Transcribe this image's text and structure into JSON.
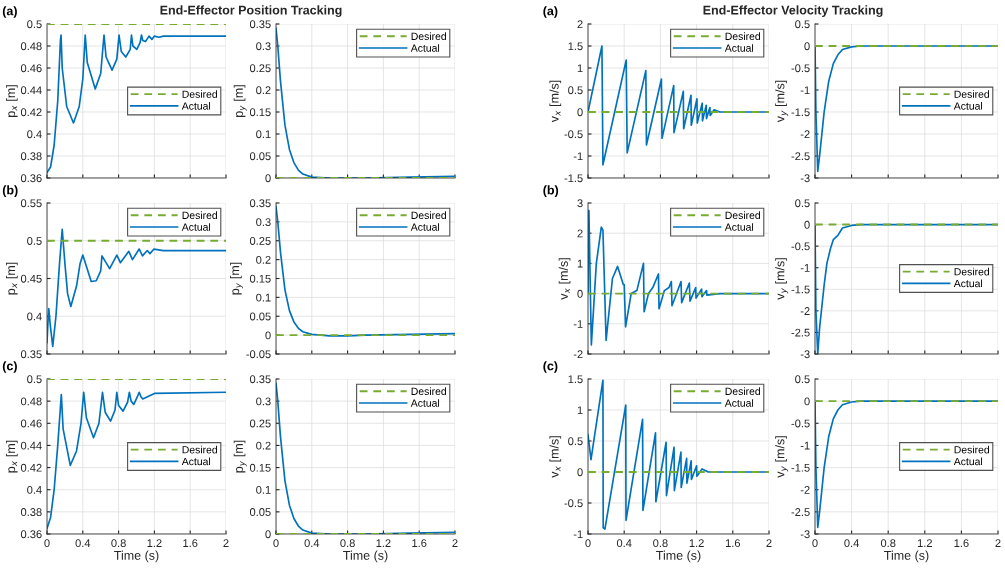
{
  "chart_data": [
    {
      "type": "line",
      "title": "End-Effector Position Tracking",
      "annotations": [
        "(a)"
      ],
      "ylabel": "p$_{x}$ [m]",
      "xlim": [
        0,
        2
      ],
      "xticks": [
        0,
        0.4,
        0.8,
        1.2,
        1.6,
        2
      ],
      "ylim": [
        0.36,
        0.5
      ],
      "yticks": [
        0.36,
        0.38,
        0.4,
        0.42,
        0.44,
        0.46,
        0.48,
        0.5
      ],
      "grid": true,
      "legend": "right",
      "tick_labels": "y",
      "series": [
        {
          "name": "Desired",
          "color": "#77ac30",
          "line_style": "dashed",
          "x": [
            0,
            2
          ],
          "values": [
            0.5,
            0.5
          ]
        },
        {
          "name": "Actual",
          "color": "#0072bd",
          "line_style": "solid",
          "x": [
            0,
            0.04,
            0.08,
            0.12,
            0.15,
            0.157,
            0.17,
            0.22,
            0.296,
            0.36,
            0.4,
            0.427,
            0.45,
            0.539,
            0.6,
            0.637,
            0.66,
            0.727,
            0.78,
            0.805,
            0.83,
            0.88,
            0.93,
            0.944,
            0.96,
            1.004,
            1.04,
            1.056,
            1.07,
            1.1,
            1.14,
            1.172,
            1.2,
            1.25,
            1.3,
            2
          ],
          "values": [
            0.365,
            0.37,
            0.39,
            0.43,
            0.485,
            0.49,
            0.46,
            0.425,
            0.41,
            0.425,
            0.45,
            0.49,
            0.465,
            0.441,
            0.455,
            0.49,
            0.47,
            0.458,
            0.468,
            0.49,
            0.475,
            0.47,
            0.477,
            0.49,
            0.48,
            0.477,
            0.483,
            0.49,
            0.485,
            0.484,
            0.489,
            0.486,
            0.489,
            0.488,
            0.489,
            0.489
          ]
        }
      ]
    },
    {
      "type": "line",
      "ylabel": "p$_{y}$ [m]",
      "xlim": [
        0,
        2
      ],
      "xticks": [
        0,
        0.4,
        0.8,
        1.2,
        1.6,
        2
      ],
      "ylim": [
        0,
        0.35
      ],
      "yticks": [
        0,
        0.05,
        0.1,
        0.15,
        0.2,
        0.25,
        0.3,
        0.35
      ],
      "grid": true,
      "legend": "top right",
      "tick_labels": "y",
      "series": [
        {
          "name": "Desired",
          "color": "#77ac30",
          "line_style": "dashed",
          "x": [
            0,
            2
          ],
          "values": [
            0,
            0
          ]
        },
        {
          "name": "Actual",
          "color": "#0072bd",
          "line_style": "solid",
          "x": [
            0,
            0.02,
            0.05,
            0.1,
            0.15,
            0.2,
            0.25,
            0.3,
            0.4,
            0.6,
            1.0,
            1.5,
            2
          ],
          "values": [
            0.34,
            0.3,
            0.22,
            0.12,
            0.065,
            0.035,
            0.018,
            0.009,
            0.002,
            0,
            0,
            0.002,
            0.004
          ]
        }
      ]
    },
    {
      "type": "line",
      "title": "End-Effector Velocity Tracking",
      "annotations": [
        "(a)"
      ],
      "ylabel": "v$_{x}$ [m/s]",
      "xlim": [
        0,
        2
      ],
      "xticks": [
        0,
        0.4,
        0.8,
        1.2,
        1.6,
        2
      ],
      "ylim": [
        -1.5,
        2
      ],
      "yticks": [
        -1.5,
        -1,
        -0.5,
        0,
        0.5,
        1,
        1.5,
        2
      ],
      "grid": true,
      "legend": "top right",
      "tick_labels": "y",
      "series": [
        {
          "name": "Desired",
          "color": "#77ac30",
          "line_style": "dashed",
          "x": [
            0,
            2
          ],
          "values": [
            0,
            0
          ]
        },
        {
          "name": "Actual",
          "color": "#0072bd",
          "line_style": "solid",
          "x": [
            0,
            0.154,
            0.165,
            0.422,
            0.433,
            0.639,
            0.646,
            0.811,
            0.818,
            0.947,
            0.95,
            1.053,
            1.057,
            1.138,
            1.141,
            1.204,
            1.207,
            1.262,
            1.265,
            1.306,
            1.309,
            1.347,
            1.35,
            1.394,
            1.457,
            2
          ],
          "values": [
            0,
            1.5,
            -1.2,
            1.18,
            -0.93,
            0.94,
            -0.75,
            0.75,
            -0.6,
            0.6,
            -0.47,
            0.47,
            -0.38,
            0.38,
            -0.3,
            0.3,
            -0.25,
            0.2,
            -0.2,
            0.15,
            -0.15,
            0.1,
            -0.08,
            0.05,
            0,
            0
          ]
        }
      ]
    },
    {
      "type": "line",
      "ylabel": "v$_{y}$ [m/s]",
      "xlim": [
        0,
        2
      ],
      "xticks": [
        0,
        0.4,
        0.8,
        1.2,
        1.6,
        2
      ],
      "ylim": [
        -3,
        0.5
      ],
      "yticks": [
        -3,
        -2.5,
        -2,
        -1.5,
        -1,
        -0.5,
        0,
        0.5
      ],
      "grid": true,
      "legend": "right",
      "tick_labels": "y",
      "series": [
        {
          "name": "Desired",
          "color": "#77ac30",
          "line_style": "dashed",
          "x": [
            0,
            2
          ],
          "values": [
            0,
            0
          ]
        },
        {
          "name": "Actual",
          "color": "#0072bd",
          "line_style": "solid",
          "x": [
            0,
            0.01,
            0.03,
            0.05,
            0.08,
            0.1,
            0.15,
            0.2,
            0.25,
            0.3,
            0.4,
            0.5,
            2
          ],
          "values": [
            0,
            -1.5,
            -2.85,
            -2.5,
            -1.9,
            -1.5,
            -0.8,
            -0.4,
            -0.2,
            -0.08,
            -0.02,
            0,
            0
          ]
        }
      ]
    },
    {
      "type": "line",
      "annotations": [
        "(b)"
      ],
      "ylabel": "p$_{x}$ [m]",
      "xlim": [
        0,
        2
      ],
      "xticks": [
        0,
        0.4,
        0.8,
        1.2,
        1.6,
        2
      ],
      "ylim": [
        0.35,
        0.55
      ],
      "yticks": [
        0.35,
        0.4,
        0.45,
        0.5,
        0.55
      ],
      "grid": true,
      "legend": "top right",
      "tick_labels": "y",
      "series": [
        {
          "name": "Desired",
          "color": "#77ac30",
          "line_style": "dashed",
          "x": [
            0,
            2
          ],
          "values": [
            0.5,
            0.5
          ]
        },
        {
          "name": "Actual",
          "color": "#0072bd",
          "line_style": "solid",
          "x": [
            0,
            0.01,
            0.02,
            0.035,
            0.064,
            0.1,
            0.14,
            0.17,
            0.2,
            0.23,
            0.266,
            0.33,
            0.37,
            0.4,
            0.494,
            0.55,
            0.6,
            0.614,
            0.7,
            0.78,
            0.82,
            0.914,
            0.955,
            1.03,
            1.067,
            1.12,
            1.15,
            1.195,
            1.3,
            2
          ],
          "values": [
            0.365,
            0.39,
            0.41,
            0.39,
            0.36,
            0.4,
            0.47,
            0.515,
            0.47,
            0.43,
            0.413,
            0.44,
            0.47,
            0.481,
            0.446,
            0.447,
            0.46,
            0.48,
            0.463,
            0.481,
            0.471,
            0.486,
            0.475,
            0.489,
            0.48,
            0.487,
            0.483,
            0.489,
            0.487,
            0.487
          ]
        }
      ]
    },
    {
      "type": "line",
      "ylabel": "p$_{y}$ [m]",
      "xlim": [
        0,
        2
      ],
      "xticks": [
        0,
        0.4,
        0.8,
        1.2,
        1.6,
        2
      ],
      "ylim": [
        -0.05,
        0.35
      ],
      "yticks": [
        -0.05,
        0,
        0.05,
        0.1,
        0.15,
        0.2,
        0.25,
        0.3,
        0.35
      ],
      "grid": true,
      "legend": "top right",
      "tick_labels": "y",
      "series": [
        {
          "name": "Desired",
          "color": "#77ac30",
          "line_style": "dashed",
          "x": [
            0,
            2
          ],
          "values": [
            0,
            0
          ]
        },
        {
          "name": "Actual",
          "color": "#0072bd",
          "line_style": "solid",
          "x": [
            0,
            0.02,
            0.05,
            0.1,
            0.15,
            0.2,
            0.25,
            0.3,
            0.4,
            0.6,
            0.8,
            1.0,
            1.5,
            2
          ],
          "values": [
            0.34,
            0.3,
            0.22,
            0.12,
            0.065,
            0.035,
            0.018,
            0.009,
            0.002,
            -0.002,
            -0.002,
            0,
            0.002,
            0.004
          ]
        }
      ]
    },
    {
      "type": "line",
      "annotations": [
        "(b)"
      ],
      "ylabel": "v$_{x}$ [m/s]",
      "xlim": [
        0,
        2
      ],
      "xticks": [
        0,
        0.4,
        0.8,
        1.2,
        1.6,
        2
      ],
      "ylim": [
        -2,
        3
      ],
      "yticks": [
        -2,
        -1,
        0,
        1,
        2,
        3
      ],
      "grid": true,
      "legend": "top right",
      "tick_labels": "y",
      "series": [
        {
          "name": "Desired",
          "color": "#77ac30",
          "line_style": "dashed",
          "x": [
            0,
            2
          ],
          "values": [
            0,
            0
          ]
        },
        {
          "name": "Actual",
          "color": "#0072bd",
          "line_style": "solid",
          "x": [
            0,
            0.005,
            0.01,
            0.037,
            0.092,
            0.147,
            0.165,
            0.2,
            0.27,
            0.327,
            0.39,
            0.4,
            0.415,
            0.477,
            0.54,
            0.613,
            0.62,
            0.668,
            0.716,
            0.778,
            0.785,
            0.844,
            0.895,
            0.921,
            0.928,
            1.028,
            1.035,
            1.12,
            1.127,
            1.19,
            1.194,
            1.255,
            1.259,
            1.31,
            1.314,
            1.457,
            2
          ],
          "values": [
            0,
            2.75,
            2.75,
            -1.7,
            1,
            2.2,
            2.1,
            -1.55,
            0.5,
            0.9,
            0.3,
            0.3,
            -1.1,
            0,
            0.1,
            1,
            -0.6,
            0,
            0.2,
            0.65,
            -0.5,
            0.1,
            0.2,
            0.4,
            -0.4,
            0.4,
            -0.3,
            0.35,
            -0.25,
            0.2,
            -0.15,
            0.15,
            -0.1,
            0.1,
            -0.05,
            0,
            0
          ]
        }
      ]
    },
    {
      "type": "line",
      "ylabel": "v$_{y}$ [m/s]",
      "xlim": [
        0,
        2
      ],
      "xticks": [
        0,
        0.4,
        0.8,
        1.2,
        1.6,
        2
      ],
      "ylim": [
        -3,
        0.5
      ],
      "yticks": [
        -3,
        -2.5,
        -2,
        -1.5,
        -1,
        -0.5,
        0,
        0.5
      ],
      "grid": true,
      "legend": "right",
      "tick_labels": "y",
      "series": [
        {
          "name": "Desired",
          "color": "#77ac30",
          "line_style": "dashed",
          "x": [
            0,
            2
          ],
          "values": [
            0,
            0
          ]
        },
        {
          "name": "Actual",
          "color": "#0072bd",
          "line_style": "solid",
          "x": [
            0,
            0.01,
            0.03,
            0.05,
            0.08,
            0.1,
            0.13,
            0.17,
            0.2,
            0.25,
            0.3,
            0.4,
            0.5,
            2
          ],
          "values": [
            0,
            -2,
            -3,
            -2.4,
            -1.8,
            -1.4,
            -0.9,
            -0.55,
            -0.35,
            -0.25,
            -0.08,
            -0.02,
            0,
            0
          ]
        }
      ]
    },
    {
      "type": "line",
      "annotations": [
        "(c)"
      ],
      "xlabel": "Time (s)",
      "ylabel": "p$_{x}$ [m]",
      "xlim": [
        0,
        2
      ],
      "xticks": [
        0,
        0.4,
        0.8,
        1.2,
        1.6,
        2
      ],
      "ylim": [
        0.36,
        0.5
      ],
      "yticks": [
        0.36,
        0.38,
        0.4,
        0.42,
        0.44,
        0.46,
        0.48,
        0.5
      ],
      "grid": true,
      "legend": "right",
      "series": [
        {
          "name": "Desired",
          "color": "#77ac30",
          "line_style": "dashed",
          "x": [
            0,
            2
          ],
          "values": [
            0.5,
            0.5
          ]
        },
        {
          "name": "Actual",
          "color": "#0072bd",
          "line_style": "solid",
          "x": [
            0,
            0.04,
            0.08,
            0.12,
            0.16,
            0.18,
            0.26,
            0.33,
            0.38,
            0.41,
            0.44,
            0.52,
            0.58,
            0.62,
            0.65,
            0.71,
            0.76,
            0.78,
            0.8,
            0.85,
            0.9,
            0.92,
            0.94,
            0.97,
            1.01,
            1.03,
            1.05,
            1.07,
            1.2,
            2
          ],
          "values": [
            0.365,
            0.375,
            0.4,
            0.44,
            0.486,
            0.455,
            0.422,
            0.435,
            0.46,
            0.488,
            0.465,
            0.447,
            0.46,
            0.488,
            0.47,
            0.462,
            0.472,
            0.488,
            0.476,
            0.471,
            0.479,
            0.488,
            0.48,
            0.477,
            0.484,
            0.488,
            0.484,
            0.482,
            0.487,
            0.488
          ]
        }
      ]
    },
    {
      "type": "line",
      "xlabel": "Time (s)",
      "ylabel": "p$_{y}$ [m]",
      "xlim": [
        0,
        2
      ],
      "xticks": [
        0,
        0.4,
        0.8,
        1.2,
        1.6,
        2
      ],
      "ylim": [
        0,
        0.35
      ],
      "yticks": [
        0,
        0.05,
        0.1,
        0.15,
        0.2,
        0.25,
        0.3,
        0.35
      ],
      "grid": true,
      "legend": "top right",
      "series": [
        {
          "name": "Desired",
          "color": "#77ac30",
          "line_style": "dashed",
          "x": [
            0,
            2
          ],
          "values": [
            0,
            0
          ]
        },
        {
          "name": "Actual",
          "color": "#0072bd",
          "line_style": "solid",
          "x": [
            0,
            0.02,
            0.05,
            0.1,
            0.15,
            0.2,
            0.25,
            0.3,
            0.4,
            0.6,
            1.0,
            1.5,
            2
          ],
          "values": [
            0.34,
            0.3,
            0.22,
            0.12,
            0.065,
            0.035,
            0.018,
            0.009,
            0.002,
            0,
            0,
            0.002,
            0.004
          ]
        }
      ]
    },
    {
      "type": "line",
      "annotations": [
        "(c)"
      ],
      "xlabel": "Time (s)",
      "ylabel": "v$_{x}$ [m/s]",
      "xlim": [
        0,
        2
      ],
      "xticks": [
        0,
        0.4,
        0.8,
        1.2,
        1.6,
        2
      ],
      "ylim": [
        -1,
        1.5
      ],
      "yticks": [
        -1,
        -0.5,
        0,
        0.5,
        1,
        1.5
      ],
      "grid": true,
      "legend": "top right",
      "series": [
        {
          "name": "Desired",
          "color": "#77ac30",
          "line_style": "dashed",
          "x": [
            0,
            2
          ],
          "values": [
            0,
            0
          ]
        },
        {
          "name": "Actual",
          "color": "#0072bd",
          "line_style": "solid",
          "x": [
            0,
            0.033,
            0.165,
            0.168,
            0.187,
            0.417,
            0.42,
            0.603,
            0.607,
            0.746,
            0.75,
            0.863,
            0.867,
            0.951,
            0.954,
            1.027,
            1.03,
            1.09,
            1.093,
            1.14,
            1.143,
            1.2,
            1.203,
            1.26,
            1.33,
            2
          ],
          "values": [
            0.6,
            0.2,
            1.48,
            -0.9,
            -0.92,
            1.08,
            -0.78,
            0.85,
            -0.62,
            0.63,
            -0.48,
            0.48,
            -0.38,
            0.4,
            -0.3,
            0.32,
            -0.25,
            0.22,
            -0.18,
            0.18,
            -0.12,
            0.1,
            -0.07,
            0.05,
            0,
            0
          ]
        }
      ]
    },
    {
      "type": "line",
      "xlabel": "Time (s)",
      "ylabel": "v$_{y}$ [m/s]",
      "xlim": [
        0,
        2
      ],
      "xticks": [
        0,
        0.4,
        0.8,
        1.2,
        1.6,
        2
      ],
      "ylim": [
        -3,
        0.5
      ],
      "yticks": [
        -3,
        -2.5,
        -2,
        -1.5,
        -1,
        -0.5,
        0,
        0.5
      ],
      "grid": true,
      "legend": "right",
      "series": [
        {
          "name": "Desired",
          "color": "#77ac30",
          "line_style": "dashed",
          "x": [
            0,
            2
          ],
          "values": [
            0,
            0
          ]
        },
        {
          "name": "Actual",
          "color": "#0072bd",
          "line_style": "solid",
          "x": [
            0,
            0.01,
            0.03,
            0.05,
            0.08,
            0.1,
            0.15,
            0.2,
            0.25,
            0.3,
            0.4,
            0.5,
            2
          ],
          "values": [
            0,
            -1.5,
            -2.85,
            -2.5,
            -1.9,
            -1.5,
            -0.8,
            -0.4,
            -0.2,
            -0.08,
            -0.02,
            0,
            0
          ]
        }
      ]
    }
  ]
}
